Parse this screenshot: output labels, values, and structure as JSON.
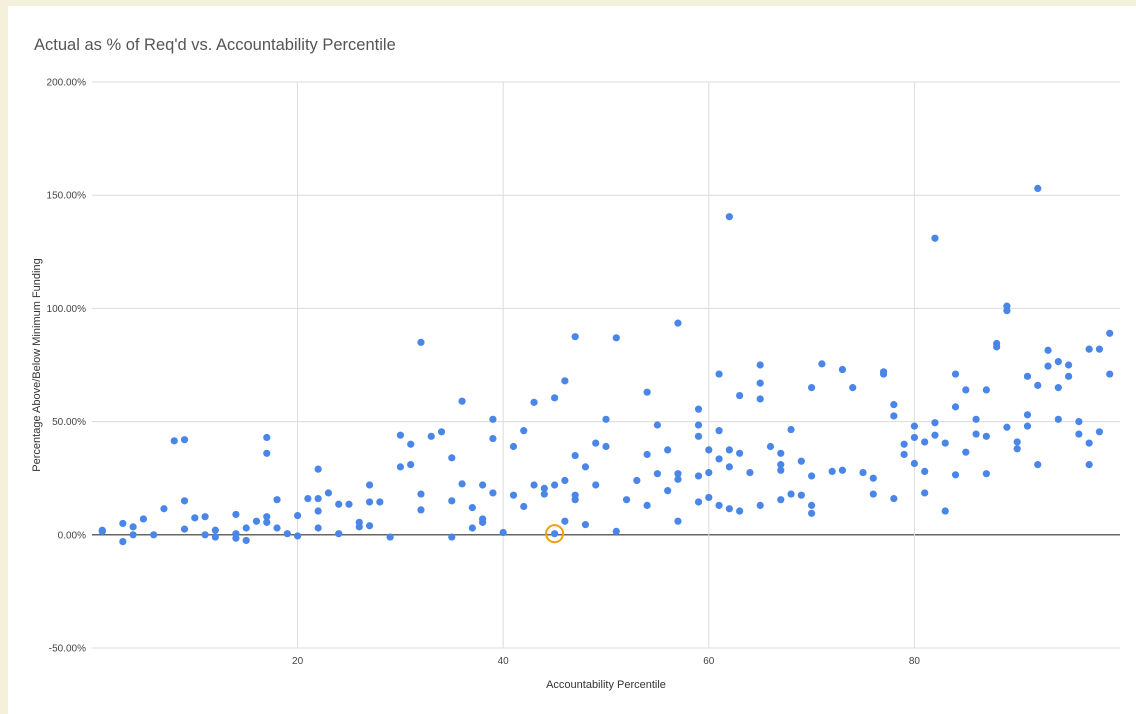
{
  "chart_data": {
    "type": "scatter",
    "title": "Actual as % of Req'd vs. Accountability Percentile",
    "xlabel": "Accountability Percentile",
    "ylabel": "Percentage Above/Below Minimum Funding",
    "xlim": [
      0,
      100
    ],
    "ylim": [
      -50,
      200
    ],
    "x_ticks": [
      20,
      40,
      60,
      80
    ],
    "x_tick_labels": [
      "20",
      "40",
      "60",
      "80"
    ],
    "y_ticks": [
      -50,
      0,
      50,
      100,
      150,
      200
    ],
    "y_tick_labels": [
      "-50.00%",
      "0.00%",
      "50.00%",
      "100.00%",
      "150.00%",
      "200.00%"
    ],
    "grid": true,
    "point_color": "#4a86e8",
    "highlight_color": "#f1a10e",
    "highlight_point": [
      45,
      0.5
    ],
    "points": [
      [
        1,
        2
      ],
      [
        1,
        1.5
      ],
      [
        3,
        5
      ],
      [
        3,
        -3
      ],
      [
        4,
        3.5
      ],
      [
        4,
        0
      ],
      [
        5,
        7
      ],
      [
        6,
        0
      ],
      [
        7,
        11.5
      ],
      [
        8,
        41.5
      ],
      [
        9,
        42
      ],
      [
        9,
        15
      ],
      [
        9,
        2.5
      ],
      [
        10,
        7.5
      ],
      [
        11,
        8
      ],
      [
        11,
        0
      ],
      [
        12,
        2
      ],
      [
        12,
        -1
      ],
      [
        14,
        9
      ],
      [
        14,
        0.5
      ],
      [
        14,
        -1.5
      ],
      [
        15,
        3
      ],
      [
        15,
        -2.5
      ],
      [
        16,
        6
      ],
      [
        17,
        43
      ],
      [
        17,
        36
      ],
      [
        17,
        8
      ],
      [
        17,
        5.5
      ],
      [
        18,
        15.5
      ],
      [
        18,
        3
      ],
      [
        19,
        0.5
      ],
      [
        20,
        8.5
      ],
      [
        20,
        -0.5
      ],
      [
        21,
        16
      ],
      [
        22,
        29
      ],
      [
        22,
        16
      ],
      [
        22,
        10.5
      ],
      [
        22,
        3
      ],
      [
        23,
        18.5
      ],
      [
        24,
        13.5
      ],
      [
        24,
        0.5
      ],
      [
        25,
        13.5
      ],
      [
        26,
        5.5
      ],
      [
        26,
        3.5
      ],
      [
        27,
        22
      ],
      [
        27,
        14.5
      ],
      [
        27,
        4
      ],
      [
        28,
        14.5
      ],
      [
        29,
        -1
      ],
      [
        30,
        44
      ],
      [
        30,
        30
      ],
      [
        31,
        40
      ],
      [
        31,
        31
      ],
      [
        32,
        85
      ],
      [
        32,
        18
      ],
      [
        32,
        11
      ],
      [
        33,
        43.5
      ],
      [
        34,
        45.5
      ],
      [
        35,
        34
      ],
      [
        35,
        15
      ],
      [
        35,
        -1
      ],
      [
        36,
        59
      ],
      [
        36,
        22.5
      ],
      [
        37,
        12
      ],
      [
        37,
        3
      ],
      [
        38,
        22
      ],
      [
        38,
        7
      ],
      [
        38,
        5.5
      ],
      [
        39,
        51
      ],
      [
        39,
        42.5
      ],
      [
        39,
        18.5
      ],
      [
        40,
        1
      ],
      [
        41,
        39
      ],
      [
        41,
        17.5
      ],
      [
        42,
        46
      ],
      [
        42,
        12.5
      ],
      [
        43,
        58.5
      ],
      [
        43,
        22
      ],
      [
        44,
        20.5
      ],
      [
        44,
        18
      ],
      [
        45,
        60.5
      ],
      [
        45,
        22
      ],
      [
        46,
        68
      ],
      [
        46,
        24
      ],
      [
        46,
        6
      ],
      [
        47,
        87.5
      ],
      [
        47,
        35
      ],
      [
        47,
        17.5
      ],
      [
        47,
        15.5
      ],
      [
        48,
        30
      ],
      [
        48,
        4.5
      ],
      [
        49,
        40.5
      ],
      [
        49,
        22
      ],
      [
        50,
        51
      ],
      [
        50,
        39
      ],
      [
        51,
        87
      ],
      [
        51,
        1.5
      ],
      [
        52,
        15.5
      ],
      [
        53,
        24
      ],
      [
        54,
        63
      ],
      [
        54,
        35.5
      ],
      [
        54,
        13
      ],
      [
        55,
        48.5
      ],
      [
        55,
        27
      ],
      [
        56,
        37.5
      ],
      [
        56,
        19.5
      ],
      [
        57,
        93.5
      ],
      [
        57,
        27
      ],
      [
        57,
        24.5
      ],
      [
        57,
        6
      ],
      [
        59,
        55.5
      ],
      [
        59,
        48.5
      ],
      [
        59,
        43.5
      ],
      [
        59,
        26
      ],
      [
        59,
        14.5
      ],
      [
        60,
        37.5
      ],
      [
        60,
        27.5
      ],
      [
        60,
        16.5
      ],
      [
        61,
        71
      ],
      [
        61,
        46
      ],
      [
        61,
        33.5
      ],
      [
        61,
        13
      ],
      [
        62,
        140.5
      ],
      [
        62,
        37.5
      ],
      [
        62,
        30
      ],
      [
        62,
        11.5
      ],
      [
        63,
        61.5
      ],
      [
        63,
        36
      ],
      [
        63,
        10.5
      ],
      [
        64,
        27.5
      ],
      [
        65,
        75
      ],
      [
        65,
        67
      ],
      [
        65,
        60
      ],
      [
        65,
        13
      ],
      [
        66,
        39
      ],
      [
        67,
        36
      ],
      [
        67,
        31
      ],
      [
        67,
        28.5
      ],
      [
        67,
        15.5
      ],
      [
        68,
        46.5
      ],
      [
        68,
        18
      ],
      [
        69,
        32.5
      ],
      [
        69,
        17.5
      ],
      [
        70,
        65
      ],
      [
        70,
        26
      ],
      [
        70,
        13
      ],
      [
        70,
        9.5
      ],
      [
        71,
        75.5
      ],
      [
        72,
        28
      ],
      [
        73,
        73
      ],
      [
        73,
        28.5
      ],
      [
        74,
        65
      ],
      [
        75,
        27.5
      ],
      [
        76,
        25
      ],
      [
        76,
        18
      ],
      [
        77,
        72
      ],
      [
        77,
        71
      ],
      [
        78,
        57.5
      ],
      [
        78,
        52.5
      ],
      [
        78,
        16
      ],
      [
        79,
        40
      ],
      [
        79,
        35.5
      ],
      [
        80,
        48
      ],
      [
        80,
        43
      ],
      [
        80,
        31.5
      ],
      [
        81,
        41
      ],
      [
        81,
        28
      ],
      [
        81,
        18.5
      ],
      [
        82,
        131
      ],
      [
        82,
        49.5
      ],
      [
        82,
        44
      ],
      [
        83,
        40.5
      ],
      [
        83,
        10.5
      ],
      [
        84,
        71
      ],
      [
        84,
        56.5
      ],
      [
        84,
        26.5
      ],
      [
        85,
        64
      ],
      [
        85,
        36.5
      ],
      [
        86,
        51
      ],
      [
        86,
        44.5
      ],
      [
        87,
        64
      ],
      [
        87,
        43.5
      ],
      [
        87,
        27
      ],
      [
        88,
        84.5
      ],
      [
        88,
        83
      ],
      [
        89,
        101
      ],
      [
        89,
        99
      ],
      [
        89,
        47.5
      ],
      [
        90,
        41
      ],
      [
        90,
        38
      ],
      [
        91,
        70
      ],
      [
        91,
        53
      ],
      [
        91,
        48
      ],
      [
        92,
        153
      ],
      [
        92,
        66
      ],
      [
        92,
        31
      ],
      [
        93,
        81.5
      ],
      [
        93,
        74.5
      ],
      [
        94,
        76.5
      ],
      [
        94,
        65
      ],
      [
        94,
        51
      ],
      [
        95,
        75
      ],
      [
        95,
        70
      ],
      [
        96,
        50
      ],
      [
        96,
        44.5
      ],
      [
        97,
        82
      ],
      [
        97,
        40.5
      ],
      [
        97,
        31
      ],
      [
        98,
        82
      ],
      [
        98,
        45.5
      ],
      [
        99,
        89
      ],
      [
        99,
        71
      ]
    ]
  }
}
